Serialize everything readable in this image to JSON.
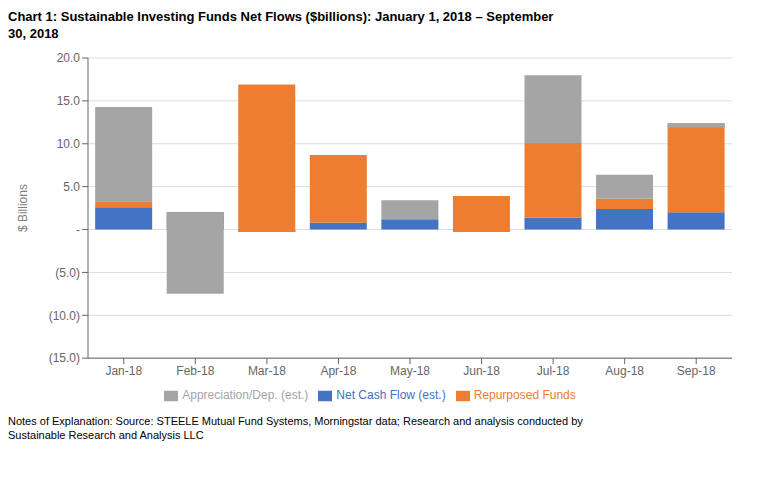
{
  "chart_data": {
    "type": "bar",
    "stacked": true,
    "title": "Chart 1: Sustainable Investing Funds Net Flows ($billions):  January 1, 2018 – September\n30, 2018",
    "ylabel": "$ Billions",
    "footnote": "Notes of Explanation:  Source: STEELE Mutual Fund Systems, Morningstar data; Research and analysis conducted by\nSustainable Research and Analysis LLC",
    "categories": [
      "Jan-18",
      "Feb-18",
      "Mar-18",
      "Apr-18",
      "May-18",
      "Jun-18",
      "Jul-18",
      "Aug-18",
      "Sep-18"
    ],
    "series": [
      {
        "name": "Net Cash Flow (est.)",
        "color": "#4472C4",
        "values": [
          2.6,
          2.0,
          -0.3,
          0.8,
          1.2,
          -0.3,
          1.4,
          2.4,
          2.0
        ]
      },
      {
        "name": "Repurposed Funds",
        "color": "#ED7D31",
        "values": [
          0.7,
          0.0,
          17.2,
          7.9,
          0.0,
          4.2,
          8.7,
          1.2,
          10.4
        ]
      },
      {
        "name": "Appreciation/Dep. (est.)",
        "color": "#A5A5A5",
        "values": [
          11.0,
          -9.5,
          0.0,
          0.0,
          2.2,
          0.0,
          7.9,
          2.8,
          -0.5
        ]
      }
    ],
    "ylim": [
      -15.0,
      20.0
    ],
    "yticks": [
      {
        "value": -15.0,
        "label": "(15.0)"
      },
      {
        "value": -10.0,
        "label": "(10.0)"
      },
      {
        "value": -5.0,
        "label": "(5.0)"
      },
      {
        "value": 0.0,
        "label": "-"
      },
      {
        "value": 5.0,
        "label": "5.0"
      },
      {
        "value": 10.0,
        "label": "10.0"
      },
      {
        "value": 15.0,
        "label": "15.0"
      },
      {
        "value": 20.0,
        "label": "20.0"
      }
    ],
    "grid": true,
    "legend": "bottom"
  }
}
